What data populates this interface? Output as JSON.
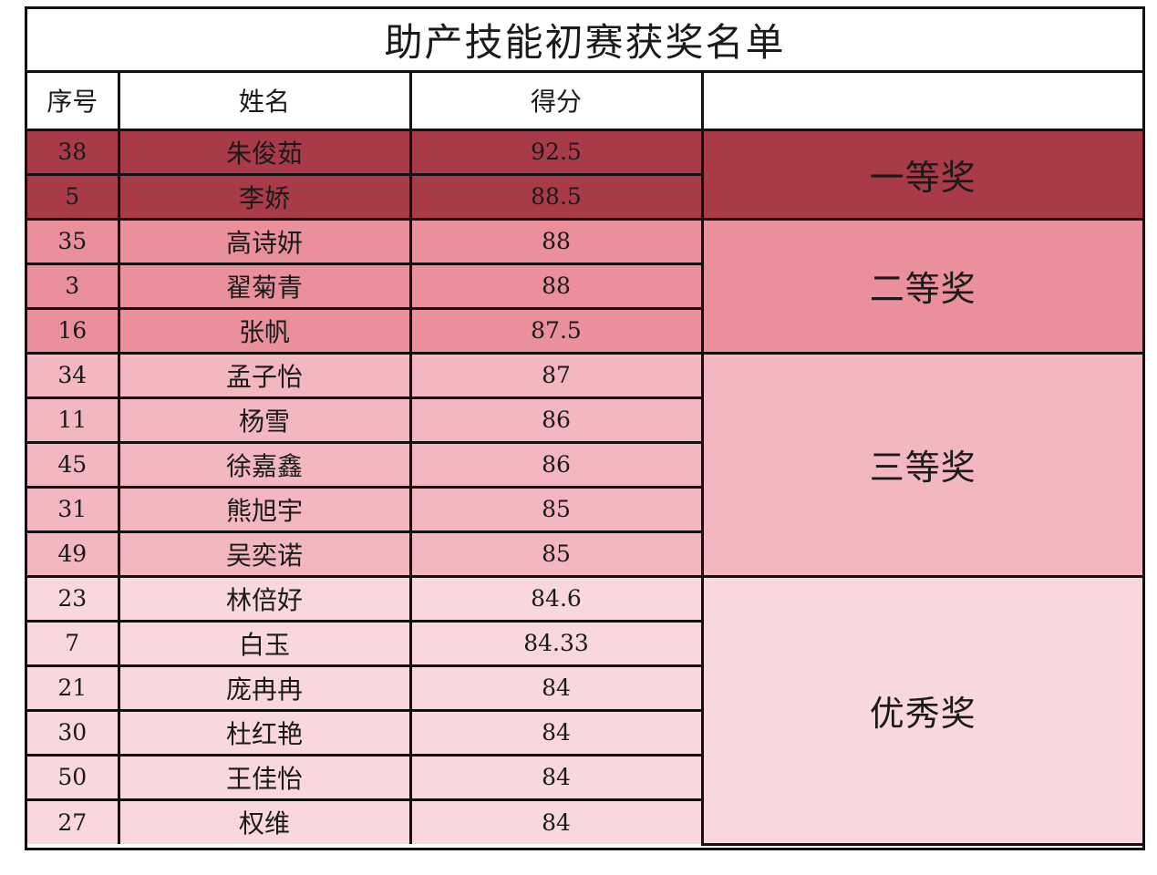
{
  "title": "助产技能初赛获奖名单",
  "headers": {
    "index": "序号",
    "name": "姓名",
    "score": "得分",
    "prize": ""
  },
  "groups": [
    {
      "prize": "一等奖",
      "color": "#a93a47",
      "rows": [
        {
          "index": "38",
          "name": "朱俊茹",
          "score": "92.5"
        },
        {
          "index": "5",
          "name": "李娇",
          "score": "88.5"
        }
      ]
    },
    {
      "prize": "二等奖",
      "color": "#e9909c",
      "rows": [
        {
          "index": "35",
          "name": "高诗妍",
          "score": "88"
        },
        {
          "index": "3",
          "name": "翟菊青",
          "score": "88"
        },
        {
          "index": "16",
          "name": "张帆",
          "score": "87.5"
        }
      ]
    },
    {
      "prize": "三等奖",
      "color": "#f3b7c0",
      "rows": [
        {
          "index": "34",
          "name": "孟子怡",
          "score": "87"
        },
        {
          "index": "11",
          "name": "杨雪",
          "score": "86"
        },
        {
          "index": "45",
          "name": "徐嘉鑫",
          "score": "86"
        },
        {
          "index": "31",
          "name": "熊旭宇",
          "score": "85"
        },
        {
          "index": "49",
          "name": "吴奕诺",
          "score": "85"
        }
      ]
    },
    {
      "prize": "优秀奖",
      "color": "#f8d8dd",
      "rows": [
        {
          "index": "23",
          "name": "林倍好",
          "score": "84.6"
        },
        {
          "index": "7",
          "name": "白玉",
          "score": "84.33"
        },
        {
          "index": "21",
          "name": "庞冉冉",
          "score": "84"
        },
        {
          "index": "30",
          "name": "杜红艳",
          "score": "84"
        },
        {
          "index": "50",
          "name": "王佳怡",
          "score": "84"
        },
        {
          "index": "27",
          "name": "权维",
          "score": "84"
        }
      ]
    }
  ]
}
